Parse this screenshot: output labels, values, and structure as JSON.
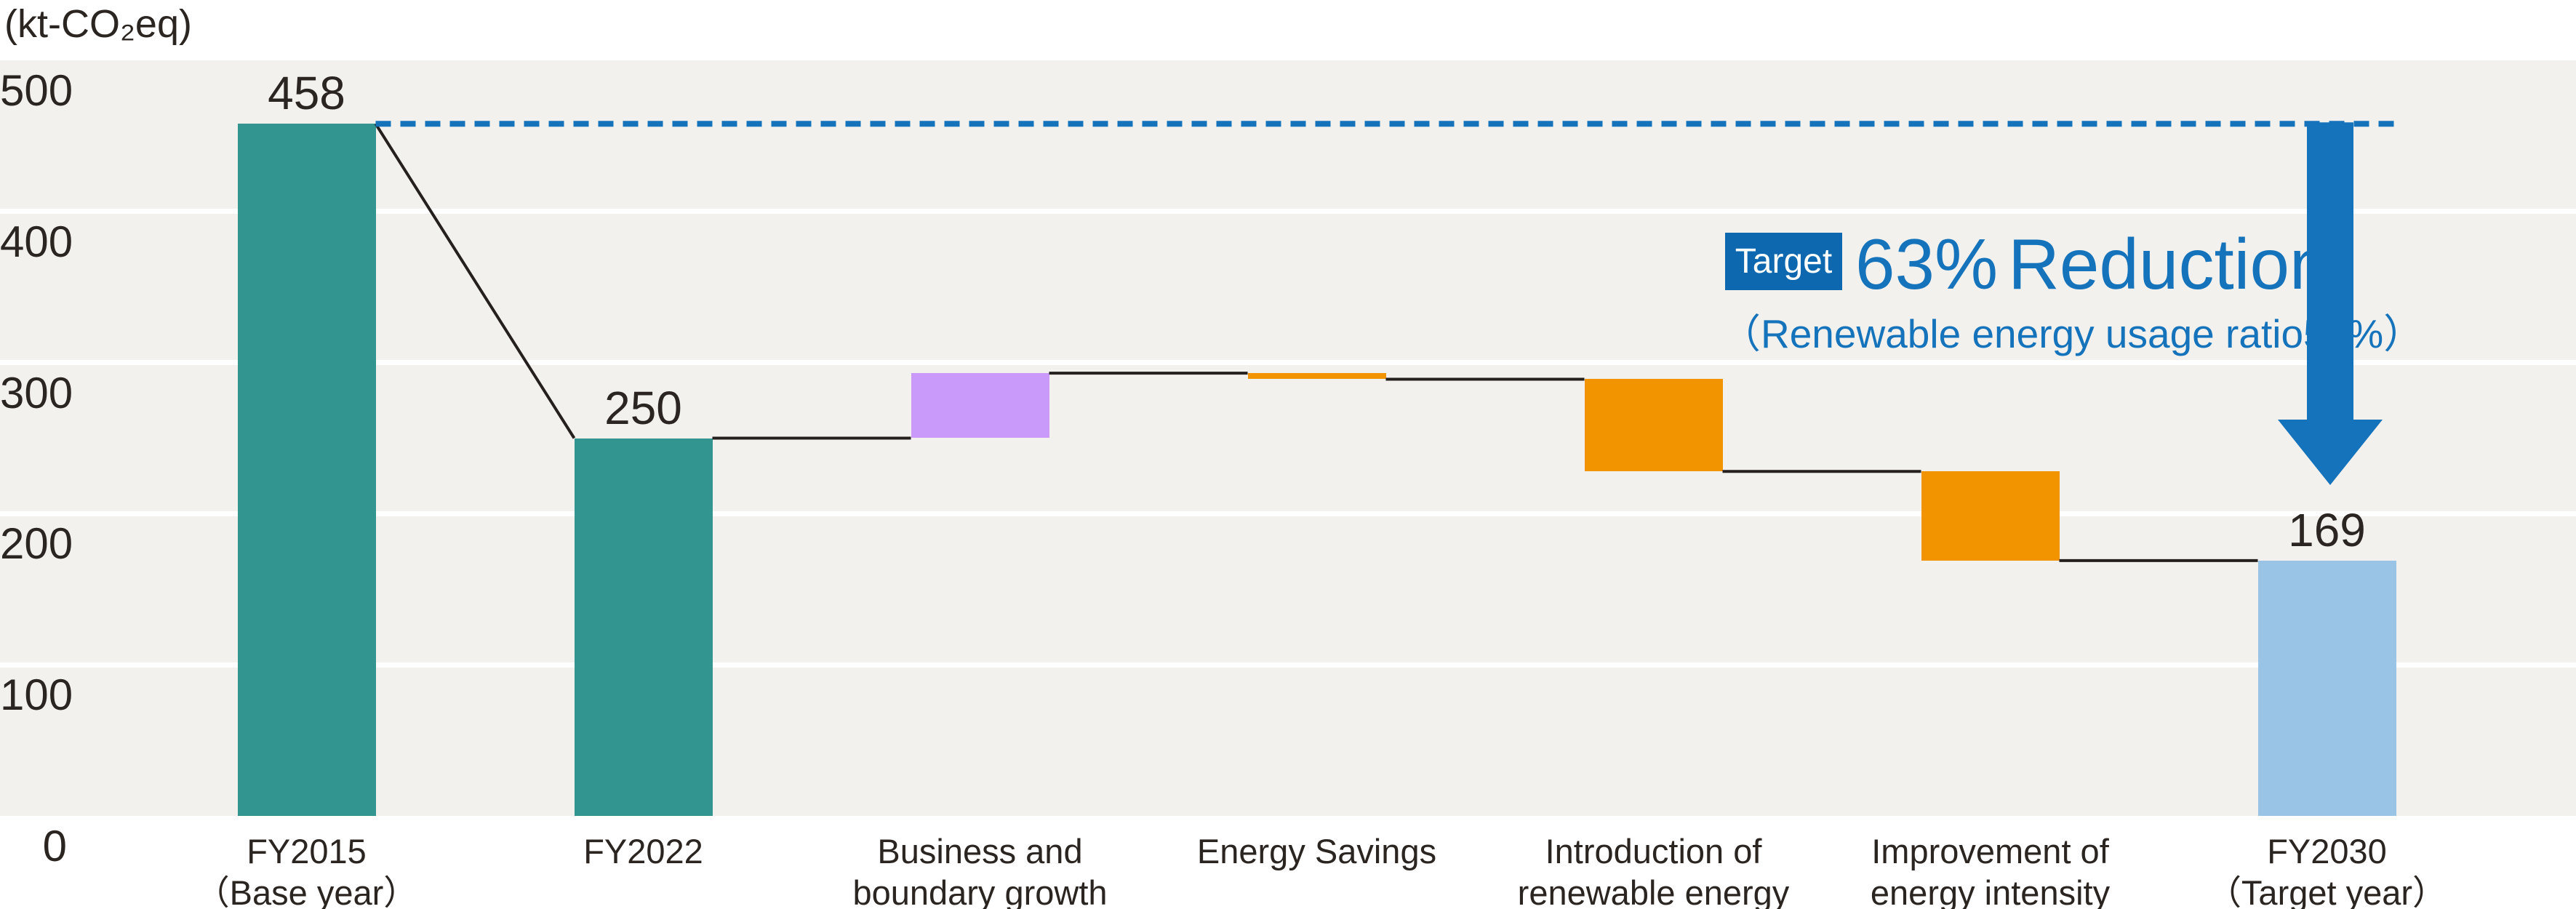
{
  "unit_label": "(kt-CO₂eq)",
  "annotation": {
    "badge": "Target",
    "percent": "63%",
    "word": "Reduction",
    "subtitle": "（Renewable energy usage ratio50%）"
  },
  "colors": {
    "teal": "#339590",
    "purple": "#ca9afa",
    "orange": "#f29400",
    "lightblue": "#9ac4e5",
    "blue": "#1473bb",
    "badge_blue": "#0d68af",
    "band_gray": "#f2f1ee",
    "grid_white": "#ffffff",
    "ink": "#2b2521",
    "connector": "#25201e"
  },
  "chart_data": {
    "type": "bar",
    "subtype": "waterfall",
    "title": "",
    "ylabel": "kt-CO₂eq",
    "xlabel": "",
    "ylim": [
      0,
      500
    ],
    "y_ticks": [
      500,
      400,
      300,
      200,
      100,
      0
    ],
    "grid": "horizontal white gridlines every 100 on light gray bands",
    "legend": "none",
    "baseline_reference": {
      "value": 458,
      "style": "blue dashed horizontal line from top of FY2015 bar to right side"
    },
    "reduction_arrow": {
      "label_value": "63% Reduction",
      "from_value": 458,
      "to_value_approx": 220,
      "over_category": "FY2030（Target year）"
    },
    "bars": [
      {
        "id": "fy2015",
        "category_lines": [
          "FY2015",
          "（Base year）"
        ],
        "role": "total",
        "from": 0,
        "to": 458,
        "value_label": "458",
        "color_key": "teal"
      },
      {
        "id": "fy2022",
        "category_lines": [
          "FY2022"
        ],
        "role": "total",
        "from": 0,
        "to": 250,
        "value_label": "250",
        "color_key": "teal"
      },
      {
        "id": "business-boundary-growth",
        "category_lines": [
          "Business and",
          "boundary growth"
        ],
        "role": "increase",
        "from": 250,
        "to": 293,
        "color_key": "purple"
      },
      {
        "id": "energy-savings",
        "category_lines": [
          "Energy Savings"
        ],
        "role": "decrease",
        "from": 293,
        "to": 289,
        "color_key": "orange"
      },
      {
        "id": "renewable-energy",
        "category_lines": [
          "Introduction of",
          "renewable energy"
        ],
        "role": "decrease",
        "from": 289,
        "to": 228,
        "color_key": "orange"
      },
      {
        "id": "energy-intensity",
        "category_lines": [
          "Improvement of",
          "energy intensity"
        ],
        "role": "decrease",
        "from": 228,
        "to": 169,
        "color_key": "orange"
      },
      {
        "id": "fy2030",
        "category_lines": [
          "FY2030",
          "（Target year）"
        ],
        "role": "total",
        "from": 0,
        "to": 169,
        "value_label": "169",
        "color_key": "lightblue"
      }
    ],
    "note": "Intermediate (unlabeled) bar endpoints estimated from gridlines"
  }
}
